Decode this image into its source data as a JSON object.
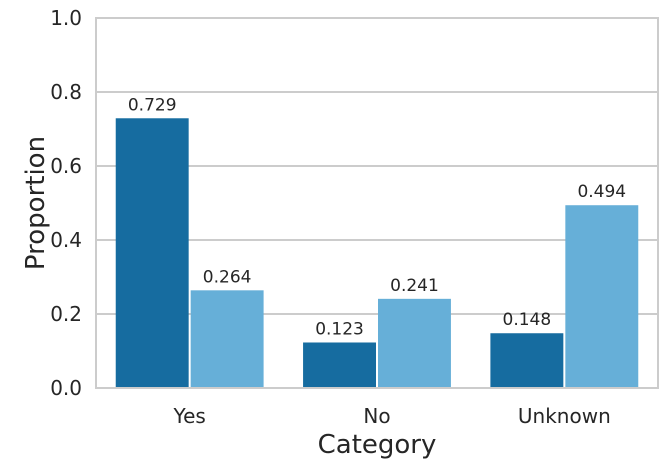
{
  "chart_data": {
    "type": "bar",
    "categories": [
      "Yes",
      "No",
      "Unknown"
    ],
    "series": [
      {
        "values": [
          0.729,
          0.123,
          0.148
        ],
        "color": "#166ca0"
      },
      {
        "values": [
          0.264,
          0.241,
          0.494
        ],
        "color": "#66afd8"
      }
    ],
    "data_labels": [
      [
        "0.729",
        "0.123",
        "0.148"
      ],
      [
        "0.264",
        "0.241",
        "0.494"
      ]
    ],
    "title": "",
    "xlabel": "Category",
    "ylabel": "Proportion",
    "ylim": [
      0,
      1.0
    ],
    "yticks": [
      0.0,
      0.2,
      0.4,
      0.6,
      0.8,
      1.0
    ],
    "ytick_labels": [
      "0.0",
      "0.2",
      "0.4",
      "0.6",
      "0.8",
      "1.0"
    ],
    "grid": "horizontal",
    "legend": "none"
  }
}
